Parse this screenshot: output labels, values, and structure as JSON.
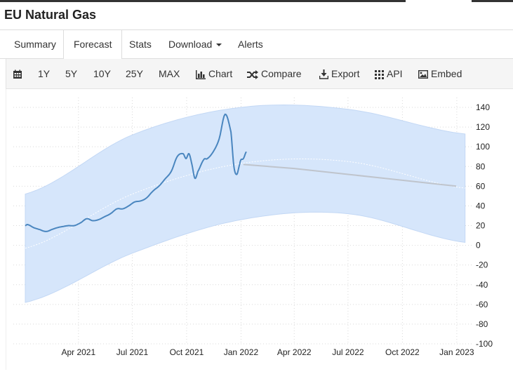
{
  "page": {
    "title": "EU Natural Gas"
  },
  "tabs": [
    {
      "label": "Summary"
    },
    {
      "label": "Forecast"
    },
    {
      "label": "Stats"
    },
    {
      "label": "Download"
    },
    {
      "label": "Alerts"
    }
  ],
  "toolbar": {
    "calendar_icon": "calendar-icon",
    "ranges": [
      "1Y",
      "5Y",
      "10Y",
      "25Y",
      "MAX"
    ],
    "chart_label": "Chart",
    "compare_label": "Compare",
    "export_label": "Export",
    "api_label": "API",
    "embed_label": "Embed"
  },
  "colors": {
    "line": "#4a86bf",
    "band": "#d6e6fb",
    "forecast": "#bfc4cc"
  },
  "chart_data": {
    "type": "line",
    "ylim": [
      -100,
      140
    ],
    "yticks": [
      "140",
      "120",
      "100",
      "80",
      "60",
      "40",
      "20",
      "0",
      "-20",
      "-40",
      "-60",
      "-80",
      "-100"
    ],
    "xticks": [
      "Apr 2021",
      "Jul 2021",
      "Oct 2021",
      "Jan 2022",
      "Apr 2022",
      "Jul 2022",
      "Oct 2022",
      "Jan 2023"
    ],
    "series": [
      {
        "x": [
          "2021-01-01",
          "2021-01-05",
          "2021-01-15",
          "2021-01-25",
          "2021-02-05",
          "2021-02-15",
          "2021-02-25",
          "2021-03-05",
          "2021-03-15",
          "2021-03-25",
          "2021-04-05",
          "2021-04-15",
          "2021-04-25",
          "2021-05-05",
          "2021-05-15",
          "2021-05-25",
          "2021-06-05",
          "2021-06-15",
          "2021-06-25",
          "2021-07-05",
          "2021-07-15",
          "2021-07-25",
          "2021-08-05",
          "2021-08-15",
          "2021-08-25",
          "2021-09-05",
          "2021-09-15",
          "2021-09-25",
          "2021-09-30",
          "2021-10-05",
          "2021-10-10",
          "2021-10-15",
          "2021-10-20",
          "2021-10-30",
          "2021-11-05",
          "2021-11-15",
          "2021-11-25",
          "2021-12-05",
          "2021-12-15",
          "2021-12-20",
          "2021-12-25",
          "2021-12-30",
          "2022-01-01",
          "2022-01-05",
          "2022-01-10"
        ],
        "y": [
          20,
          21,
          18,
          16,
          14,
          16,
          18,
          19,
          20,
          20,
          23,
          27,
          25,
          26,
          29,
          32,
          37,
          37,
          40,
          44,
          45,
          48,
          55,
          60,
          67,
          75,
          90,
          93,
          88,
          93,
          82,
          68,
          75,
          87,
          88,
          95,
          108,
          133,
          115,
          80,
          72,
          83,
          87,
          88,
          95
        ]
      },
      {
        "x": [
          "2022-01-05",
          "2022-04-01",
          "2022-07-01",
          "2022-10-01",
          "2022-12-31"
        ],
        "y": [
          82,
          78,
          72,
          66,
          60
        ]
      }
    ],
    "band": {
      "x": [
        "2021-01-01",
        "2021-07-01",
        "2022-01-01",
        "2022-07-01",
        "2023-01-15"
      ],
      "upper": [
        52,
        112,
        140,
        138,
        113
      ],
      "lower": [
        -58,
        -8,
        26,
        32,
        3
      ]
    },
    "grid": true
  }
}
